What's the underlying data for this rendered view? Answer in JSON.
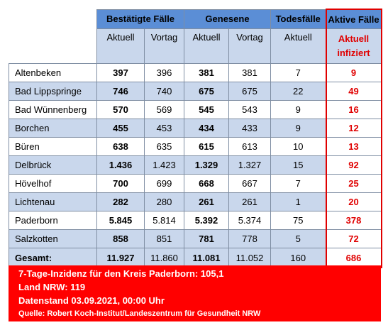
{
  "headers": {
    "confirmed": "Bestätigte Fälle",
    "recovered": "Genesene",
    "deaths": "Todesfälle",
    "active": "Aktive Fälle",
    "current": "Aktuell",
    "previous": "Vortag",
    "active_sub_line1": "Aktuell",
    "active_sub_line2": "infiziert"
  },
  "rows": [
    {
      "name": "Altenbeken",
      "confirmed": "397",
      "confirmed_prev": "396",
      "recovered": "381",
      "recovered_prev": "381",
      "deaths": "7",
      "active": "9"
    },
    {
      "name": "Bad Lippspringe",
      "confirmed": "746",
      "confirmed_prev": "740",
      "recovered": "675",
      "recovered_prev": "675",
      "deaths": "22",
      "active": "49"
    },
    {
      "name": "Bad Wünnenberg",
      "confirmed": "570",
      "confirmed_prev": "569",
      "recovered": "545",
      "recovered_prev": "543",
      "deaths": "9",
      "active": "16"
    },
    {
      "name": "Borchen",
      "confirmed": "455",
      "confirmed_prev": "453",
      "recovered": "434",
      "recovered_prev": "433",
      "deaths": "9",
      "active": "12"
    },
    {
      "name": "Büren",
      "confirmed": "638",
      "confirmed_prev": "635",
      "recovered": "615",
      "recovered_prev": "613",
      "deaths": "10",
      "active": "13"
    },
    {
      "name": "Delbrück",
      "confirmed": "1.436",
      "confirmed_prev": "1.423",
      "recovered": "1.329",
      "recovered_prev": "1.327",
      "deaths": "15",
      "active": "92"
    },
    {
      "name": "Hövelhof",
      "confirmed": "700",
      "confirmed_prev": "699",
      "recovered": "668",
      "recovered_prev": "667",
      "deaths": "7",
      "active": "25"
    },
    {
      "name": "Lichtenau",
      "confirmed": "282",
      "confirmed_prev": "280",
      "recovered": "261",
      "recovered_prev": "261",
      "deaths": "1",
      "active": "20"
    },
    {
      "name": "Paderborn",
      "confirmed": "5.845",
      "confirmed_prev": "5.814",
      "recovered": "5.392",
      "recovered_prev": "5.374",
      "deaths": "75",
      "active": "378"
    },
    {
      "name": "Salzkotten",
      "confirmed": "858",
      "confirmed_prev": "851",
      "recovered": "781",
      "recovered_prev": "778",
      "deaths": "5",
      "active": "72"
    }
  ],
  "total": {
    "name": "Gesamt:",
    "confirmed": "11.927",
    "confirmed_prev": "11.860",
    "recovered": "11.081",
    "recovered_prev": "11.052",
    "deaths": "160",
    "active": "686"
  },
  "footer": {
    "incidence": "7-Tage-Inzidenz für den Kreis Paderborn: 105,1",
    "nrw": "Land NRW: 119",
    "date": "Datenstand 03.09.2021, 00:00 Uhr",
    "source": "Quelle: Robert Koch-Institut/Landeszentrum für Gesundheit NRW"
  },
  "colors": {
    "header_blue": "#5b8ed6",
    "light_blue": "#c9d7ec",
    "red": "#ff0000",
    "active_red": "#e00000"
  }
}
